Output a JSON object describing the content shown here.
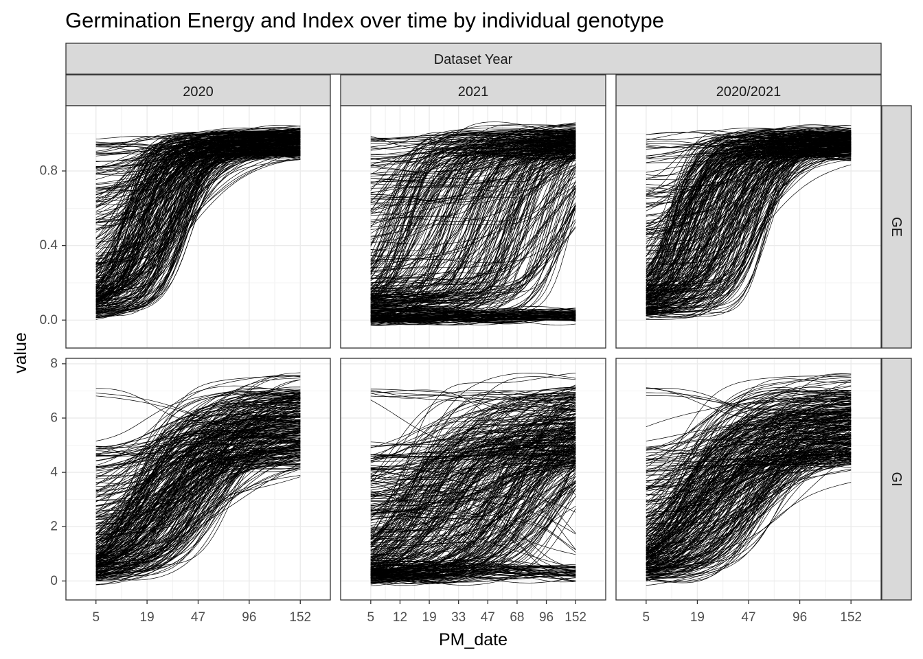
{
  "chart_data": {
    "type": "line",
    "title": "Germination Energy and Index over time by individual genotype",
    "xlabel": "PM_date",
    "ylabel": "value",
    "outer_strip": "Dataset Year",
    "grid": true,
    "legend": "none",
    "line_color": "#000000",
    "columns": [
      {
        "label": "2020",
        "x_ticks": [
          5,
          19,
          47,
          96,
          152
        ]
      },
      {
        "label": "2021",
        "x_ticks": [
          5,
          12,
          19,
          33,
          47,
          68,
          96,
          152
        ]
      },
      {
        "label": "2020/2021",
        "x_ticks": [
          5,
          19,
          47,
          96,
          152
        ]
      }
    ],
    "rows": [
      {
        "label": "GE",
        "y_ticks": [
          "0.0",
          "0.4",
          "0.8"
        ],
        "ylim": [
          -0.15,
          1.15
        ]
      },
      {
        "label": "GI",
        "y_ticks": [
          "0",
          "2",
          "4",
          "6",
          "8"
        ],
        "ylim": [
          -0.7,
          8.2
        ]
      }
    ],
    "x_range": [
      5,
      152
    ],
    "series_note_values": {
      "GE_start_range": [
        0.0,
        1.0
      ],
      "GE_end_range": [
        0.85,
        1.08
      ],
      "GI_start_range": [
        0.0,
        7.1
      ],
      "GI_end_range": [
        3.5,
        7.9
      ]
    }
  }
}
